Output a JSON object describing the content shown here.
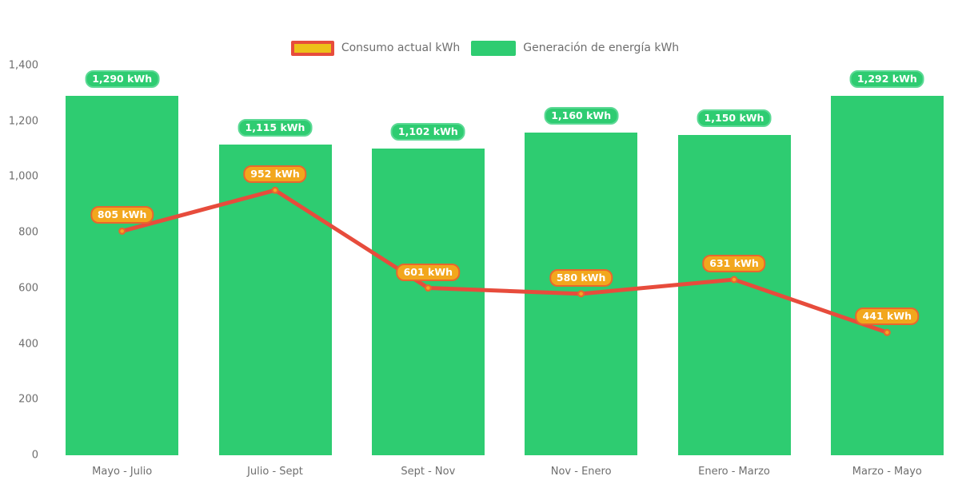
{
  "chart_data": {
    "type": "combo",
    "title": "",
    "categories": [
      "Mayo - Julio",
      "Julio - Sept",
      "Sept - Nov",
      "Nov - Enero",
      "Enero - Marzo",
      "Marzo - Mayo"
    ],
    "series": [
      {
        "name": "Consumo actual kWh",
        "type": "line",
        "values": [
          805,
          952,
          601,
          580,
          631,
          441
        ],
        "labels": [
          "805 kWh",
          "952 kWh",
          "601 kWh",
          "580 kWh",
          "631 kWh",
          "441 kWh"
        ],
        "line_color": "#e74c3c",
        "point_fill": "#f5a623",
        "point_border": "#e8672e",
        "badge_fill": "#f2a71d",
        "badge_border": "#e8672e",
        "legend_swatch_fill": "#edc019",
        "legend_swatch_border": "#e74c3c"
      },
      {
        "name": "Generación de energía kWh",
        "type": "bar",
        "values": [
          1290,
          1115,
          1102,
          1160,
          1150,
          1292
        ],
        "labels": [
          "1,290 kWh",
          "1,115 kWh",
          "1,102 kWh",
          "1,160 kWh",
          "1,150 kWh",
          "1,292 kWh"
        ],
        "bar_color": "#2ecc71",
        "badge_fill": "#2ecc71",
        "badge_border": "#5cd995"
      }
    ],
    "y_axis": {
      "ylim": [
        0,
        1400
      ],
      "ticks": [
        {
          "value": 1400,
          "label": "1,400"
        },
        {
          "value": 1200,
          "label": "1,200"
        },
        {
          "value": 1000,
          "label": "1,000"
        },
        {
          "value": 800,
          "label": "800"
        },
        {
          "value": 600,
          "label": "600"
        },
        {
          "value": 400,
          "label": "400"
        },
        {
          "value": 200,
          "label": "200"
        },
        {
          "value": 0,
          "label": "0"
        }
      ]
    },
    "grid": false,
    "legend_position": "top",
    "text_color": "#6e6e6e"
  }
}
